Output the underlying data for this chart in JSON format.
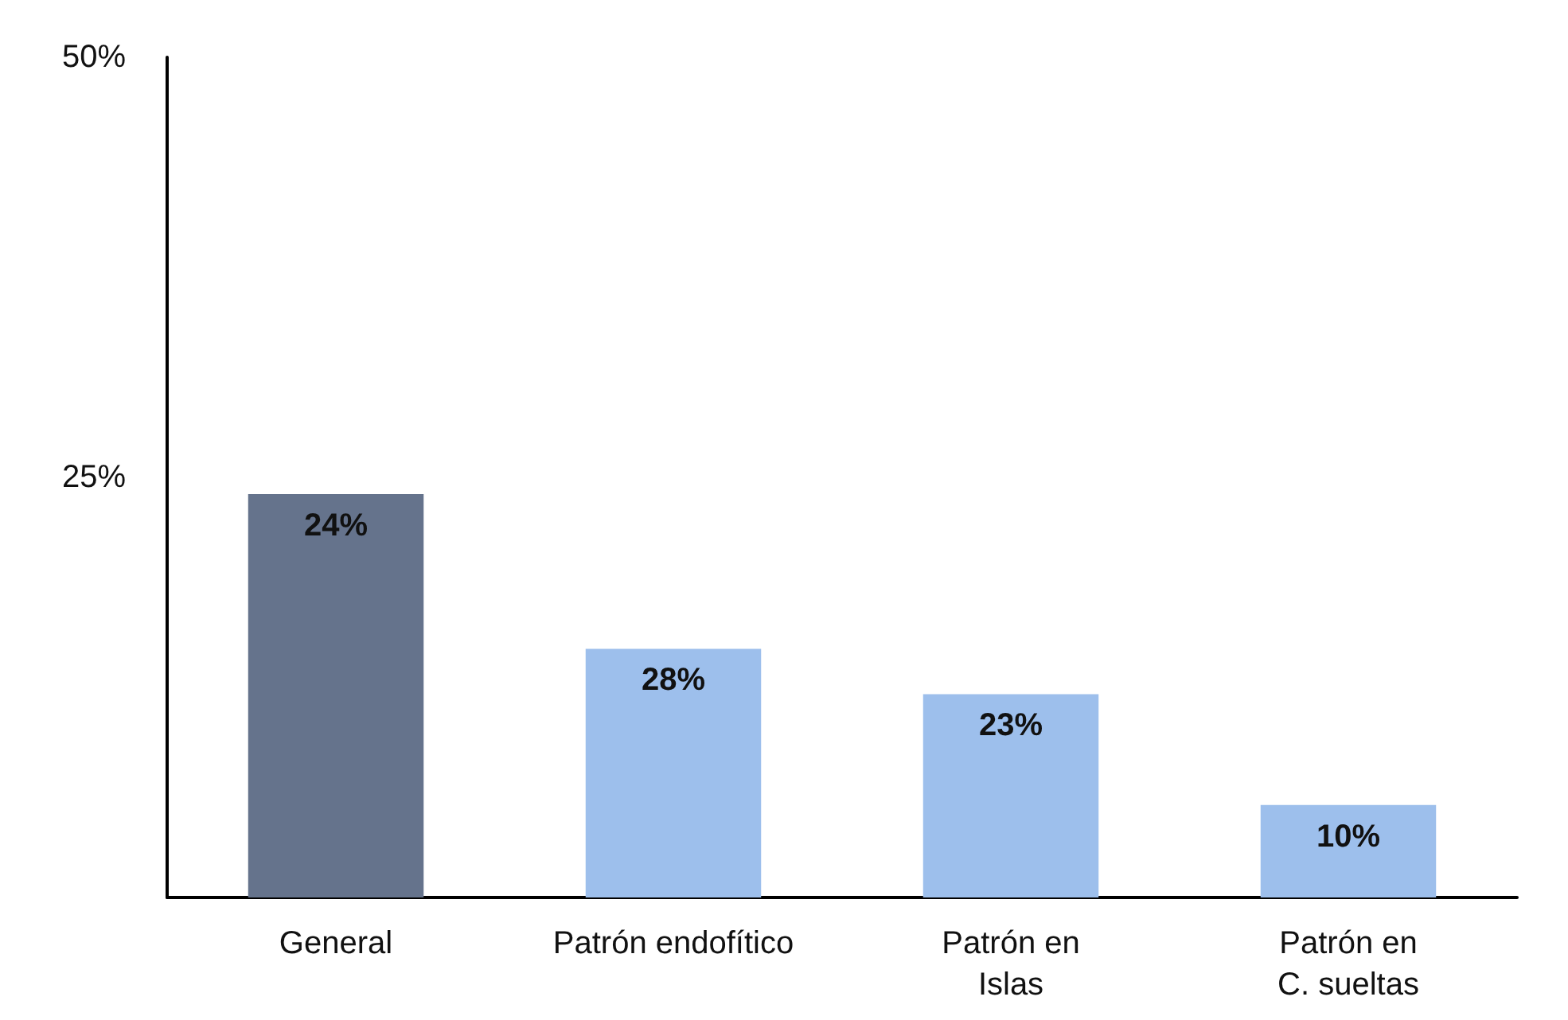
{
  "chart_data": {
    "type": "bar",
    "categories": [
      "General",
      "Patrón endofítico",
      "Patrón en\nIslas",
      "Patrón en\nC. sueltas"
    ],
    "values": [
      24,
      14.8,
      12.1,
      5.5
    ],
    "colors": [
      "#65738c",
      "#9dbfec",
      "#9dbfec",
      "#9dbfec"
    ],
    "annotations": [
      {
        "text": "24%",
        "x": "General",
        "y": 24
      },
      {
        "text": "28%",
        "x": "Patrón endofítico",
        "y": 14.8
      },
      {
        "text": "23%",
        "x": "Patrón en\nIslas",
        "y": 12.1
      },
      {
        "text": "10%",
        "x": "Patrón en\nC. sueltas",
        "y": 5.5
      }
    ],
    "ylim": [
      0,
      50
    ],
    "yticks": [
      {
        "value": 25,
        "label": "25%"
      },
      {
        "value": 50,
        "label": "50%"
      }
    ],
    "grid": false
  }
}
